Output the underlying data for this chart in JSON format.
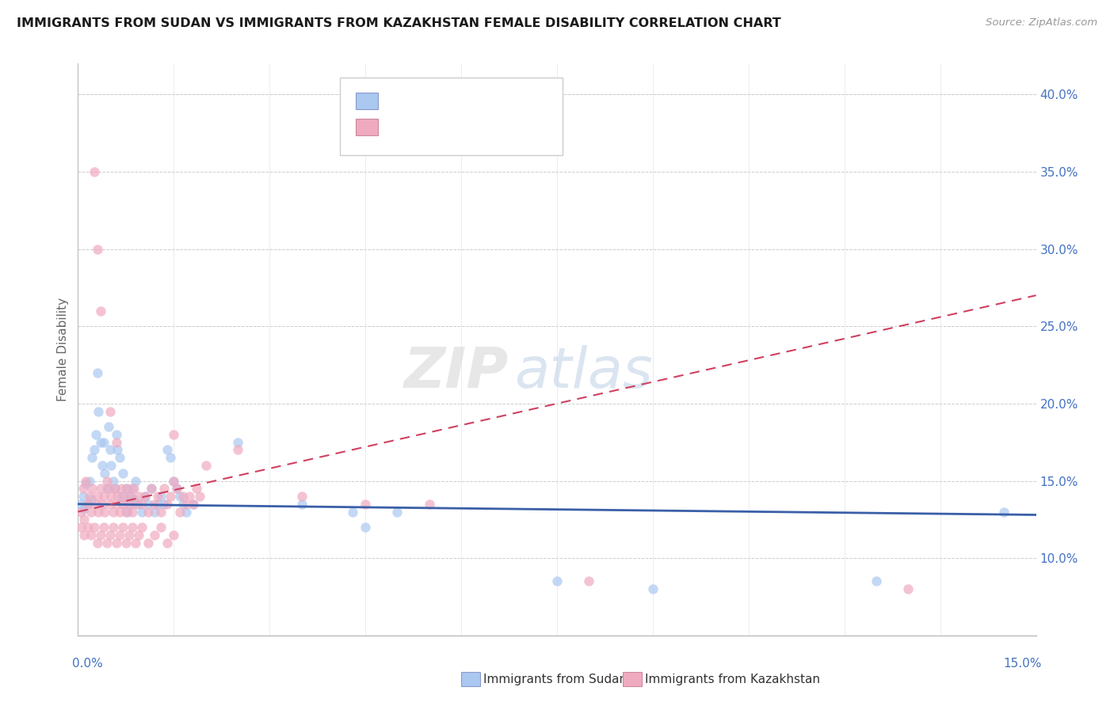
{
  "title": "IMMIGRANTS FROM SUDAN VS IMMIGRANTS FROM KAZAKHSTAN FEMALE DISABILITY CORRELATION CHART",
  "source": "Source: ZipAtlas.com",
  "ylabel": "Female Disability",
  "xlim": [
    0.0,
    15.0
  ],
  "ylim": [
    5.0,
    42.0
  ],
  "yticks": [
    10.0,
    15.0,
    20.0,
    25.0,
    30.0,
    35.0,
    40.0
  ],
  "ytick_labels": [
    "10.0%",
    "15.0%",
    "20.0%",
    "25.0%",
    "30.0%",
    "35.0%",
    "40.0%"
  ],
  "color_sudan": "#aac8f0",
  "color_kazakhstan": "#f0aac0",
  "color_trendline_sudan": "#3a5fa8",
  "color_trendline_kazakhstan": "#d04060",
  "background_color": "#ffffff",
  "axis_color": "#4472c4",
  "sudan_trendline": [
    13.5,
    12.8
  ],
  "kazakhstan_trendline": [
    13.0,
    27.0
  ],
  "sudan_data": [
    [
      0.05,
      13.5
    ],
    [
      0.08,
      14.0
    ],
    [
      0.1,
      13.2
    ],
    [
      0.12,
      14.8
    ],
    [
      0.15,
      13.5
    ],
    [
      0.18,
      15.0
    ],
    [
      0.2,
      13.8
    ],
    [
      0.22,
      16.5
    ],
    [
      0.25,
      17.0
    ],
    [
      0.28,
      18.0
    ],
    [
      0.3,
      22.0
    ],
    [
      0.32,
      19.5
    ],
    [
      0.35,
      17.5
    ],
    [
      0.38,
      16.0
    ],
    [
      0.4,
      17.5
    ],
    [
      0.42,
      15.5
    ],
    [
      0.45,
      14.5
    ],
    [
      0.48,
      18.5
    ],
    [
      0.5,
      17.0
    ],
    [
      0.52,
      16.0
    ],
    [
      0.55,
      15.0
    ],
    [
      0.58,
      14.5
    ],
    [
      0.6,
      18.0
    ],
    [
      0.62,
      17.0
    ],
    [
      0.65,
      16.5
    ],
    [
      0.68,
      14.0
    ],
    [
      0.7,
      15.5
    ],
    [
      0.72,
      13.5
    ],
    [
      0.75,
      14.5
    ],
    [
      0.78,
      13.0
    ],
    [
      0.8,
      14.0
    ],
    [
      0.82,
      13.5
    ],
    [
      0.85,
      14.5
    ],
    [
      0.88,
      13.8
    ],
    [
      0.9,
      15.0
    ],
    [
      0.95,
      13.5
    ],
    [
      1.0,
      13.0
    ],
    [
      1.05,
      14.0
    ],
    [
      1.1,
      13.5
    ],
    [
      1.15,
      14.5
    ],
    [
      1.2,
      13.0
    ],
    [
      1.25,
      13.5
    ],
    [
      1.3,
      14.0
    ],
    [
      1.35,
      13.5
    ],
    [
      1.4,
      17.0
    ],
    [
      1.45,
      16.5
    ],
    [
      1.5,
      15.0
    ],
    [
      1.55,
      14.5
    ],
    [
      1.6,
      14.0
    ],
    [
      1.65,
      13.5
    ],
    [
      1.7,
      13.0
    ],
    [
      1.8,
      13.5
    ],
    [
      2.5,
      17.5
    ],
    [
      3.5,
      13.5
    ],
    [
      4.3,
      13.0
    ],
    [
      4.5,
      12.0
    ],
    [
      5.0,
      13.0
    ],
    [
      7.5,
      8.5
    ],
    [
      9.0,
      8.0
    ],
    [
      12.5,
      8.5
    ],
    [
      14.5,
      13.0
    ]
  ],
  "kazakhstan_data": [
    [
      0.05,
      13.0
    ],
    [
      0.08,
      14.5
    ],
    [
      0.1,
      12.5
    ],
    [
      0.12,
      15.0
    ],
    [
      0.15,
      13.5
    ],
    [
      0.18,
      14.0
    ],
    [
      0.2,
      13.0
    ],
    [
      0.22,
      14.5
    ],
    [
      0.25,
      35.0
    ],
    [
      0.28,
      13.5
    ],
    [
      0.3,
      14.0
    ],
    [
      0.32,
      13.0
    ],
    [
      0.35,
      14.5
    ],
    [
      0.38,
      13.5
    ],
    [
      0.4,
      14.0
    ],
    [
      0.42,
      13.0
    ],
    [
      0.45,
      15.0
    ],
    [
      0.48,
      14.5
    ],
    [
      0.5,
      13.5
    ],
    [
      0.52,
      14.0
    ],
    [
      0.55,
      13.0
    ],
    [
      0.58,
      14.5
    ],
    [
      0.6,
      13.5
    ],
    [
      0.62,
      14.0
    ],
    [
      0.65,
      13.0
    ],
    [
      0.68,
      14.5
    ],
    [
      0.7,
      13.5
    ],
    [
      0.72,
      14.0
    ],
    [
      0.75,
      13.0
    ],
    [
      0.78,
      14.5
    ],
    [
      0.8,
      13.5
    ],
    [
      0.82,
      14.0
    ],
    [
      0.85,
      13.0
    ],
    [
      0.88,
      14.5
    ],
    [
      0.9,
      13.5
    ],
    [
      0.95,
      14.0
    ],
    [
      1.0,
      13.5
    ],
    [
      1.05,
      14.0
    ],
    [
      1.1,
      13.0
    ],
    [
      1.15,
      14.5
    ],
    [
      1.2,
      13.5
    ],
    [
      1.25,
      14.0
    ],
    [
      1.3,
      13.0
    ],
    [
      1.35,
      14.5
    ],
    [
      1.4,
      13.5
    ],
    [
      1.45,
      14.0
    ],
    [
      1.5,
      15.0
    ],
    [
      1.55,
      14.5
    ],
    [
      1.6,
      13.0
    ],
    [
      1.65,
      14.0
    ],
    [
      1.7,
      13.5
    ],
    [
      1.75,
      14.0
    ],
    [
      1.8,
      13.5
    ],
    [
      1.85,
      14.5
    ],
    [
      1.9,
      14.0
    ],
    [
      0.05,
      12.0
    ],
    [
      0.1,
      11.5
    ],
    [
      0.15,
      12.0
    ],
    [
      0.2,
      11.5
    ],
    [
      0.25,
      12.0
    ],
    [
      0.3,
      11.0
    ],
    [
      0.35,
      11.5
    ],
    [
      0.4,
      12.0
    ],
    [
      0.45,
      11.0
    ],
    [
      0.5,
      11.5
    ],
    [
      0.55,
      12.0
    ],
    [
      0.6,
      11.0
    ],
    [
      0.65,
      11.5
    ],
    [
      0.7,
      12.0
    ],
    [
      0.75,
      11.0
    ],
    [
      0.8,
      11.5
    ],
    [
      0.85,
      12.0
    ],
    [
      0.9,
      11.0
    ],
    [
      0.95,
      11.5
    ],
    [
      1.0,
      12.0
    ],
    [
      1.1,
      11.0
    ],
    [
      1.2,
      11.5
    ],
    [
      1.3,
      12.0
    ],
    [
      1.4,
      11.0
    ],
    [
      1.5,
      11.5
    ],
    [
      0.3,
      30.0
    ],
    [
      0.35,
      26.0
    ],
    [
      0.5,
      19.5
    ],
    [
      0.6,
      17.5
    ],
    [
      1.5,
      18.0
    ],
    [
      2.0,
      16.0
    ],
    [
      2.5,
      17.0
    ],
    [
      3.5,
      14.0
    ],
    [
      4.5,
      13.5
    ],
    [
      5.5,
      13.5
    ],
    [
      8.0,
      8.5
    ],
    [
      13.0,
      8.0
    ]
  ]
}
